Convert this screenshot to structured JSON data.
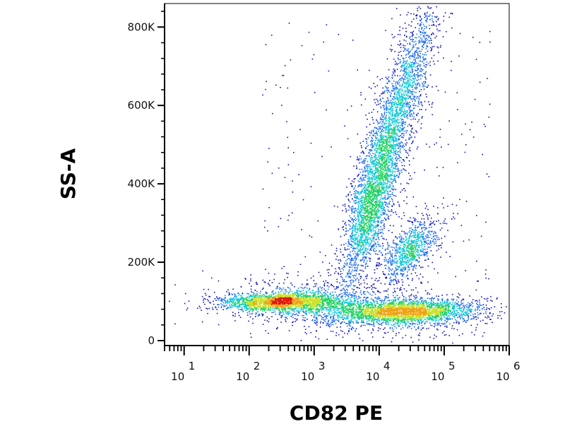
{
  "chart_data": {
    "type": "scatter",
    "title": "",
    "xlabel": "CD82 PE",
    "ylabel": "SS-A",
    "x_scale": "log",
    "xlim": [
      5,
      1000000
    ],
    "ylim": [
      0,
      860000
    ],
    "x_ticks": [
      {
        "base": "10",
        "exp": "1"
      },
      {
        "base": "10",
        "exp": "2"
      },
      {
        "base": "10",
        "exp": "3"
      },
      {
        "base": "10",
        "exp": "4"
      },
      {
        "base": "10",
        "exp": "5"
      },
      {
        "base": "10",
        "exp": "6"
      }
    ],
    "y_ticks": [
      "0",
      "200K",
      "400K",
      "600K",
      "800K"
    ],
    "y_tick_values": [
      0,
      200000,
      400000,
      600000,
      800000
    ],
    "colormap": [
      "#1010c0",
      "#1e6cf0",
      "#10c8d8",
      "#20d060",
      "#c8e020",
      "#f0a010",
      "#e01808"
    ],
    "grid": false,
    "legend": "none",
    "populations": [
      {
        "x_center": 17000,
        "y_center": 560000,
        "n": 2600
      },
      {
        "x_center": 7000,
        "y_center": 330000,
        "n": 1700
      },
      {
        "x_center": 30000,
        "y_center": 235000,
        "n": 900
      },
      {
        "x_center": 25000,
        "y_center": 75000,
        "n": 2600
      },
      {
        "x_center": 300,
        "y_center": 100000,
        "n": 2000
      },
      {
        "x_center": 3000,
        "y_center": 90000,
        "n": 900
      }
    ]
  }
}
